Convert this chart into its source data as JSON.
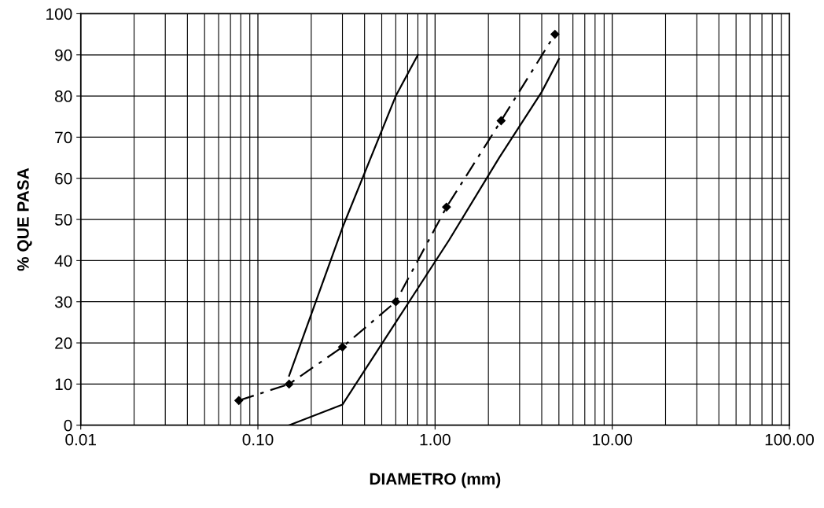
{
  "chart_data": {
    "type": "line",
    "xlabel": "DIAMETRO (mm)",
    "ylabel": "% QUE PASA",
    "log": "x",
    "xlim": [
      0.01,
      100
    ],
    "xticks": [
      {
        "value": 0.01,
        "label": "0.01"
      },
      {
        "value": 0.1,
        "label": "0.10"
      },
      {
        "value": 1,
        "label": "1.00"
      },
      {
        "value": 10,
        "label": "10.00"
      },
      {
        "value": 100,
        "label": "100.00"
      }
    ],
    "ylim": [
      0,
      100
    ],
    "yticks": [
      0,
      10,
      20,
      30,
      40,
      50,
      60,
      70,
      80,
      90,
      100
    ],
    "grid": true,
    "legend": false,
    "series": [
      {
        "color": "#000000",
        "x": [
          0.15,
          0.3,
          0.6,
          0.8
        ],
        "values": [
          12,
          48,
          80,
          90
        ],
        "line_style": "solid",
        "marker": "none"
      },
      {
        "color": "#000000",
        "x": [
          0.15,
          0.3,
          0.6,
          1.2,
          2.3,
          4.0,
          5.0
        ],
        "values": [
          0,
          5,
          25,
          45,
          65,
          81,
          89
        ],
        "line_style": "solid",
        "marker": "none"
      },
      {
        "color": "#000000",
        "x": [
          0.078,
          0.15,
          0.3,
          0.6,
          1.16,
          2.36,
          4.75
        ],
        "values": [
          6,
          10,
          19,
          30,
          53,
          74,
          95
        ],
        "line_style": "dashed",
        "marker": "diamond"
      }
    ]
  }
}
